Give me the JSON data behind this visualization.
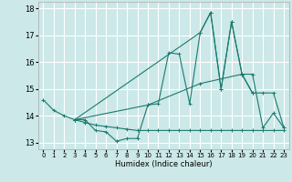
{
  "xlabel": "Humidex (Indice chaleur)",
  "bg_color": "#cce8e8",
  "grid_color": "#ffffff",
  "line_color": "#1a7a6e",
  "xlim": [
    -0.5,
    23.5
  ],
  "ylim": [
    12.75,
    18.25
  ],
  "yticks": [
    13,
    14,
    15,
    16,
    17,
    18
  ],
  "xticks": [
    0,
    1,
    2,
    3,
    4,
    5,
    6,
    7,
    8,
    9,
    10,
    11,
    12,
    13,
    14,
    15,
    16,
    17,
    18,
    19,
    20,
    21,
    22,
    23
  ],
  "lines": [
    {
      "x": [
        0,
        1,
        2,
        3,
        4,
        5,
        6,
        7,
        8,
        9,
        10,
        11,
        12,
        13,
        14,
        15,
        16,
        17,
        18,
        19,
        20
      ],
      "y": [
        14.6,
        14.2,
        14.0,
        13.85,
        13.85,
        13.45,
        13.4,
        13.05,
        13.15,
        13.15,
        14.4,
        14.45,
        16.35,
        16.3,
        14.45,
        17.1,
        17.85,
        15.0,
        17.5,
        15.55,
        14.85
      ]
    },
    {
      "x": [
        3,
        4,
        5,
        6,
        7,
        8,
        9,
        10,
        11,
        12,
        13,
        14,
        15,
        16,
        17,
        18,
        19,
        20,
        21,
        22,
        23
      ],
      "y": [
        13.85,
        13.75,
        13.65,
        13.6,
        13.55,
        13.5,
        13.45,
        13.45,
        13.45,
        13.45,
        13.45,
        13.45,
        13.45,
        13.45,
        13.45,
        13.45,
        13.45,
        13.45,
        13.45,
        13.45,
        13.45
      ]
    },
    {
      "x": [
        3,
        10,
        15,
        19,
        20,
        21,
        22,
        23
      ],
      "y": [
        13.85,
        14.4,
        15.2,
        15.55,
        15.55,
        13.55,
        14.1,
        13.55
      ]
    },
    {
      "x": [
        3,
        15,
        16,
        17,
        18,
        19,
        20,
        21,
        22,
        23
      ],
      "y": [
        13.85,
        17.1,
        17.85,
        15.0,
        17.5,
        15.55,
        14.85,
        14.85,
        14.85,
        13.55
      ]
    }
  ]
}
